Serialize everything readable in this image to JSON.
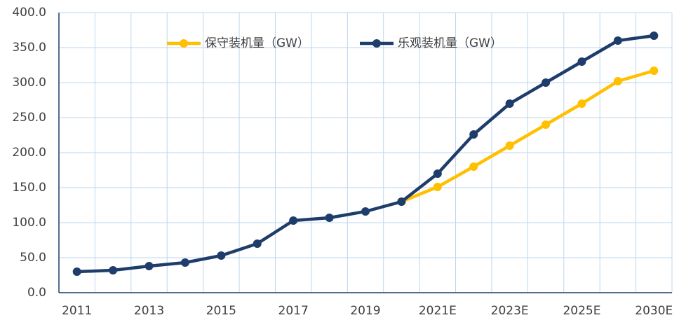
{
  "chart_data": {
    "type": "line",
    "categories": [
      "2011",
      null,
      "2013",
      null,
      "2015",
      null,
      "2017",
      null,
      "2019",
      null,
      "2021E",
      null,
      "2023E",
      null,
      "2025E",
      null,
      "2030E"
    ],
    "series": [
      {
        "name": "保守装机量（GW）",
        "color": "#ffc000",
        "values": [
          null,
          null,
          null,
          null,
          null,
          null,
          null,
          null,
          null,
          130,
          151,
          180,
          210,
          240,
          270,
          302,
          317
        ]
      },
      {
        "name": "乐观装机量（GW）",
        "color": "#1f3d6b",
        "values": [
          30,
          32,
          38,
          43,
          53,
          70,
          103,
          107,
          116,
          130,
          170,
          226,
          270,
          300,
          330,
          360,
          367
        ]
      }
    ],
    "ylim": [
      0,
      400
    ],
    "yticks": [
      {
        "value": 0,
        "label": "0.0"
      },
      {
        "value": 50,
        "label": "50.0"
      },
      {
        "value": 100,
        "label": "100.0"
      },
      {
        "value": 150,
        "label": "150.0"
      },
      {
        "value": 200,
        "label": "200.0"
      },
      {
        "value": 250,
        "label": "250.0"
      },
      {
        "value": 300,
        "label": "300.0"
      },
      {
        "value": 350,
        "label": "350.0"
      },
      {
        "value": 400,
        "label": "400.0"
      }
    ],
    "grid": true,
    "legend": "top"
  }
}
